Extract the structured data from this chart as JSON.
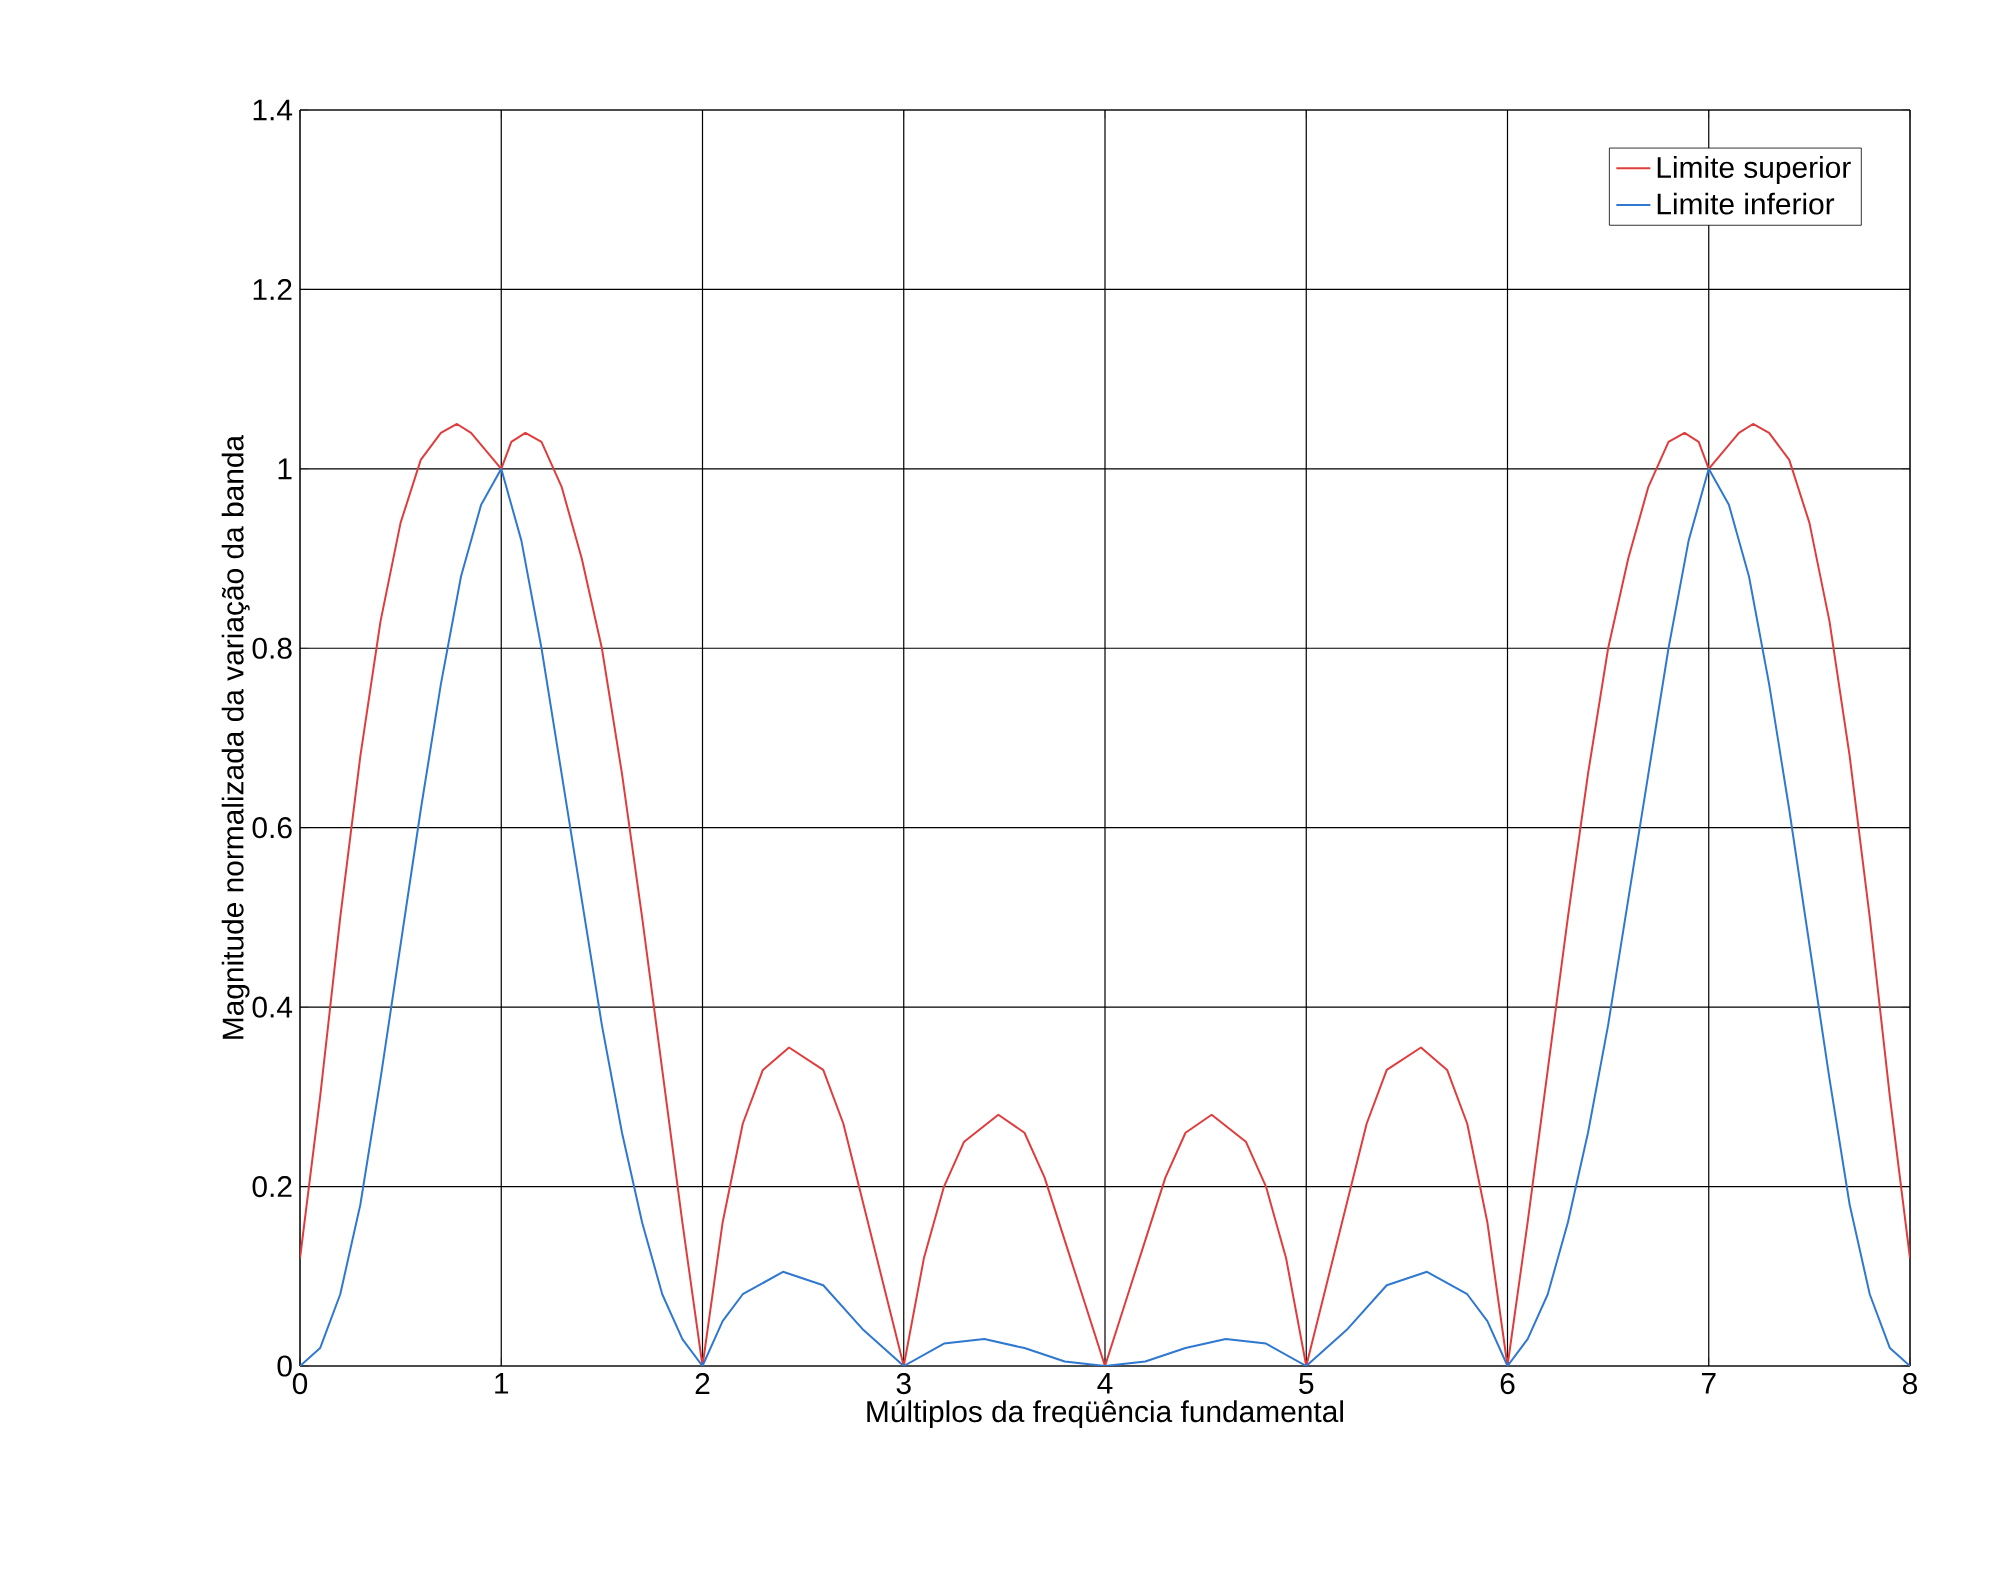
{
  "chart_data": {
    "type": "line",
    "xlabel": "Múltiplos da freqüência fundamental",
    "ylabel": "Magnitude normalizada da variação da banda",
    "xlim": [
      0,
      8
    ],
    "ylim": [
      0,
      1.4
    ],
    "xticks": [
      0,
      1,
      2,
      3,
      4,
      5,
      6,
      7,
      8
    ],
    "yticks": [
      0,
      0.2,
      0.4,
      0.6,
      0.8,
      1,
      1.2,
      1.4
    ],
    "grid": true,
    "legend": "top right",
    "line_style": "solid",
    "series": [
      {
        "name": "Limite superior",
        "color": "#e03c3c",
        "x": [
          0,
          0.1,
          0.2,
          0.3,
          0.4,
          0.5,
          0.6,
          0.7,
          0.78,
          0.85,
          1,
          1.05,
          1.12,
          1.2,
          1.3,
          1.4,
          1.5,
          1.6,
          1.7,
          1.8,
          1.9,
          2,
          2.1,
          2.2,
          2.3,
          2.43,
          2.6,
          2.7,
          2.8,
          2.9,
          3,
          3.1,
          3.2,
          3.3,
          3.47,
          3.6,
          3.7,
          3.8,
          3.9,
          4,
          4.1,
          4.2,
          4.3,
          4.4,
          4.53,
          4.7,
          4.8,
          4.9,
          5,
          5.1,
          5.2,
          5.3,
          5.4,
          5.57,
          5.7,
          5.8,
          5.9,
          6,
          6.1,
          6.2,
          6.3,
          6.4,
          6.5,
          6.6,
          6.7,
          6.8,
          6.88,
          6.95,
          7,
          7.15,
          7.22,
          7.3,
          7.4,
          7.5,
          7.6,
          7.7,
          7.8,
          7.9,
          8
        ],
        "values": [
          0.12,
          0.3,
          0.5,
          0.68,
          0.83,
          0.94,
          1.01,
          1.04,
          1.05,
          1.04,
          1.0,
          1.03,
          1.04,
          1.03,
          0.98,
          0.9,
          0.8,
          0.66,
          0.5,
          0.33,
          0.16,
          0,
          0.16,
          0.27,
          0.33,
          0.355,
          0.33,
          0.27,
          0.18,
          0.09,
          0,
          0.12,
          0.2,
          0.25,
          0.28,
          0.26,
          0.21,
          0.14,
          0.07,
          0,
          0.07,
          0.14,
          0.21,
          0.26,
          0.28,
          0.25,
          0.2,
          0.12,
          0,
          0.09,
          0.18,
          0.27,
          0.33,
          0.355,
          0.33,
          0.27,
          0.16,
          0,
          0.16,
          0.33,
          0.5,
          0.66,
          0.8,
          0.9,
          0.98,
          1.03,
          1.04,
          1.03,
          1.0,
          1.04,
          1.05,
          1.04,
          1.01,
          0.94,
          0.83,
          0.68,
          0.5,
          0.3,
          0.12
        ]
      },
      {
        "name": "Limite inferior",
        "color": "#2f78d0",
        "x": [
          0,
          0.1,
          0.2,
          0.3,
          0.4,
          0.5,
          0.6,
          0.7,
          0.8,
          0.9,
          1,
          1.1,
          1.2,
          1.3,
          1.4,
          1.5,
          1.6,
          1.7,
          1.8,
          1.9,
          2,
          2.1,
          2.2,
          2.4,
          2.6,
          2.8,
          3,
          3.2,
          3.4,
          3.6,
          3.8,
          4,
          4.2,
          4.4,
          4.6,
          4.8,
          5,
          5.2,
          5.4,
          5.6,
          5.8,
          5.9,
          6,
          6.1,
          6.2,
          6.3,
          6.4,
          6.5,
          6.6,
          6.7,
          6.8,
          6.9,
          7,
          7.1,
          7.2,
          7.3,
          7.4,
          7.5,
          7.6,
          7.7,
          7.8,
          7.9,
          8
        ],
        "values": [
          0,
          0.02,
          0.08,
          0.18,
          0.32,
          0.47,
          0.62,
          0.76,
          0.88,
          0.96,
          1.0,
          0.92,
          0.8,
          0.66,
          0.52,
          0.38,
          0.26,
          0.16,
          0.08,
          0.03,
          0,
          0.05,
          0.08,
          0.105,
          0.09,
          0.04,
          0,
          0.025,
          0.03,
          0.02,
          0.005,
          0,
          0.005,
          0.02,
          0.03,
          0.025,
          0,
          0.04,
          0.09,
          0.105,
          0.08,
          0.05,
          0,
          0.03,
          0.08,
          0.16,
          0.26,
          0.38,
          0.52,
          0.66,
          0.8,
          0.92,
          1.0,
          0.96,
          0.88,
          0.76,
          0.62,
          0.47,
          0.32,
          0.18,
          0.08,
          0.02,
          0
        ]
      }
    ]
  }
}
